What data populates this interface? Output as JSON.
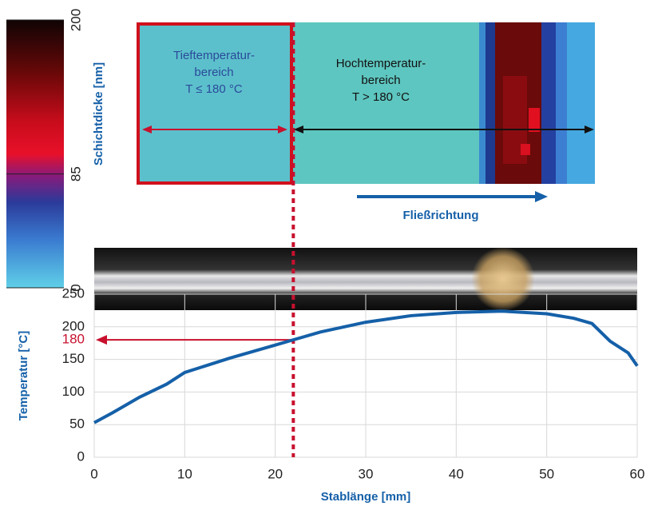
{
  "chart_data": [
    {
      "type": "line",
      "xlabel": "Stablänge [mm]",
      "ylabel": "Temperatur [°C]",
      "x": [
        0,
        2,
        5,
        8,
        10,
        15,
        20,
        22,
        25,
        30,
        35,
        40,
        45,
        50,
        53,
        55,
        57,
        59,
        60
      ],
      "values": [
        53,
        68,
        92,
        112,
        130,
        152,
        172,
        180,
        192,
        207,
        217,
        222,
        224,
        220,
        213,
        205,
        178,
        160,
        140
      ],
      "color": "#1560a8",
      "xlim": [
        0,
        60
      ],
      "ylim": [
        0,
        250
      ],
      "xticks": [
        0,
        10,
        20,
        30,
        40,
        50,
        60
      ],
      "yticks": [
        0,
        50,
        100,
        150,
        200,
        250
      ],
      "grid": true,
      "highlight": {
        "x": 22,
        "y": 180,
        "color": "#c8102e"
      }
    },
    {
      "type": "colorbar",
      "label": "Schichtdicke [nm]",
      "ylim": [
        0,
        200
      ],
      "yticks": [
        0,
        85,
        200
      ]
    }
  ],
  "heatmap": {
    "low": [
      "Tieftemperatur-",
      "bereich",
      "T ≤ 180 °C"
    ],
    "high": [
      "Hochtemperatur-",
      "bereich",
      "T > 180 °C"
    ],
    "flow": "Fließrichtung"
  }
}
